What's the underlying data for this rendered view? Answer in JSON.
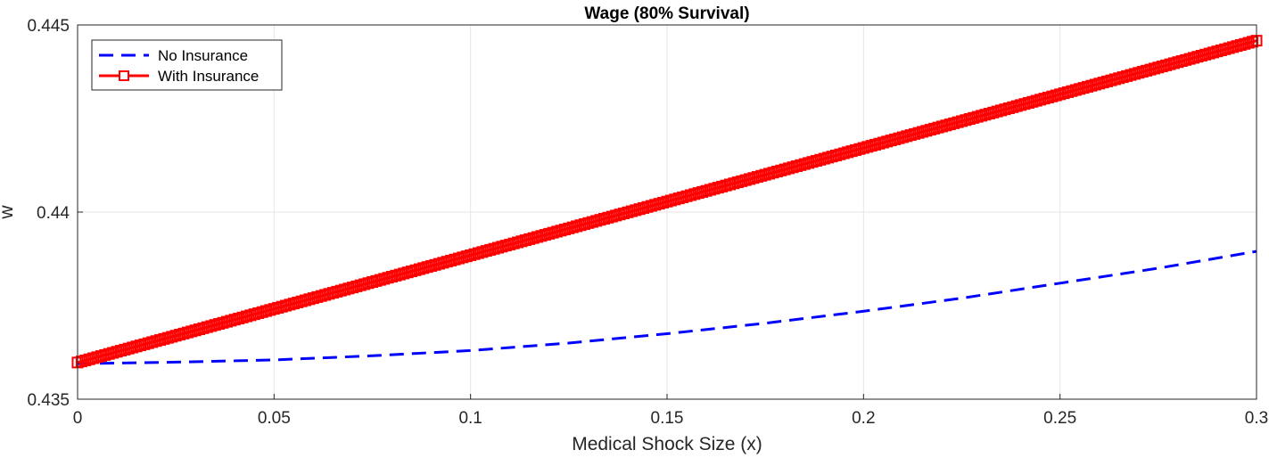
{
  "chart_data": {
    "type": "line",
    "title": "Wage (80% Survival)",
    "xlabel": "Medical Shock Size (x)",
    "ylabel": "w",
    "xlim": [
      0,
      0.3
    ],
    "ylim": [
      0.435,
      0.445
    ],
    "xticks": [
      "0",
      "0.05",
      "0.1",
      "0.15",
      "0.2",
      "0.25",
      "0.3"
    ],
    "yticks": [
      "0.435",
      "0.44",
      "0.445"
    ],
    "grid": true,
    "legend_position": "top-left",
    "series": [
      {
        "name": "No Insurance",
        "color": "#0000ff",
        "style": "dashed",
        "x": [
          0,
          0.025,
          0.05,
          0.075,
          0.1,
          0.125,
          0.15,
          0.175,
          0.2,
          0.225,
          0.25,
          0.275,
          0.3
        ],
        "y": [
          0.43595,
          0.43599,
          0.43605,
          0.43616,
          0.4363,
          0.4365,
          0.43675,
          0.43703,
          0.43735,
          0.4377,
          0.4381,
          0.4385,
          0.43895
        ]
      },
      {
        "name": "With Insurance",
        "color": "#ff0000",
        "style": "solid-square-markers",
        "x": [
          0,
          0.3
        ],
        "y": [
          0.43598,
          0.44458
        ]
      }
    ]
  }
}
